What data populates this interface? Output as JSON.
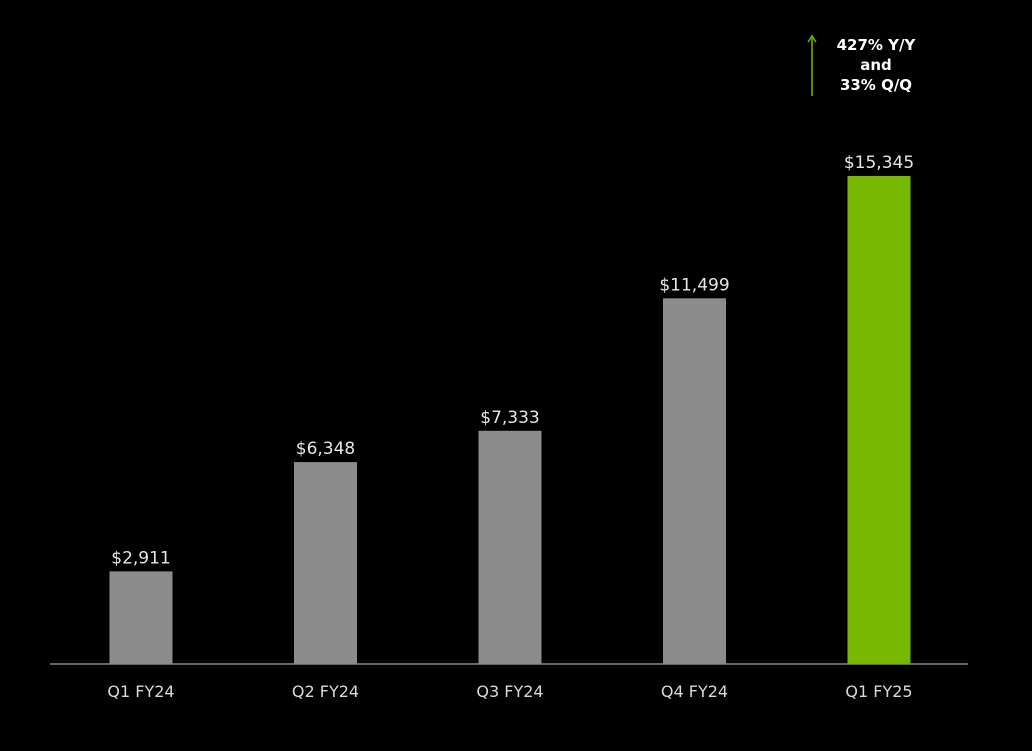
{
  "colors": {
    "background": "#000000",
    "bar_default": "#8c8c8c",
    "bar_highlight": "#76b900",
    "axis": "#8a8a8a",
    "label_text": "#e6e6e6",
    "arrow": "#76b900"
  },
  "callout": {
    "lines": [
      "427% Y/Y",
      "and",
      "33% Q/Q"
    ],
    "icon": "up-arrow-icon"
  },
  "chart_data": {
    "type": "bar",
    "title": "",
    "xlabel": "",
    "ylabel": "",
    "categories": [
      "Q1 FY24",
      "Q2 FY24",
      "Q3 FY24",
      "Q4 FY24",
      "Q1 FY25"
    ],
    "values": [
      2911,
      6348,
      7333,
      11499,
      15345
    ],
    "value_labels": [
      "$2,911",
      "$6,348",
      "$7,333",
      "$11,499",
      "$15,345"
    ],
    "highlight_index": 4,
    "ylim": [
      0,
      15345
    ],
    "grid": false,
    "legend": "none"
  }
}
